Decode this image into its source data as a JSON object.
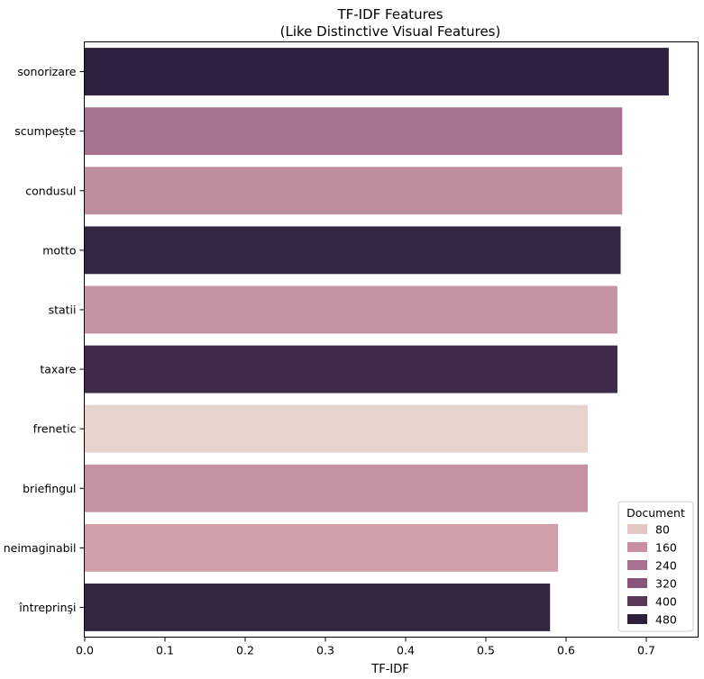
{
  "chart_data": {
    "type": "bar",
    "orientation": "horizontal",
    "title": "TF-IDF Features",
    "subtitle": "(Like Distinctive Visual Features)",
    "xlabel": "TF-IDF",
    "ylabel": "",
    "xlim": [
      0.0,
      0.76
    ],
    "xticks": [
      "0.0",
      "0.1",
      "0.2",
      "0.3",
      "0.4",
      "0.5",
      "0.6",
      "0.7"
    ],
    "grid": false,
    "legend_position": "bottom-right",
    "legend": {
      "title": "Document",
      "entries": [
        {
          "label": "80",
          "color": "#e5c6c4"
        },
        {
          "label": "160",
          "color": "#c88fa2"
        },
        {
          "label": "240",
          "color": "#a7708e"
        },
        {
          "label": "320",
          "color": "#875579"
        },
        {
          "label": "400",
          "color": "#583a58"
        },
        {
          "label": "480",
          "color": "#2e1f3a"
        }
      ]
    },
    "categories": [
      "sonorizare",
      "scumpește",
      "condusul",
      "motto",
      "statii",
      "taxare",
      "frenetic",
      "briefingul",
      "neimaginabil",
      "întreprinşi"
    ],
    "values": [
      0.728,
      0.67,
      0.67,
      0.668,
      0.664,
      0.664,
      0.627,
      0.627,
      0.59,
      0.58
    ],
    "documents": [
      490,
      250,
      185,
      470,
      175,
      430,
      60,
      180,
      150,
      480
    ],
    "colors": [
      "#2f2240",
      "#a2728e",
      "#bf8e9e",
      "#342642",
      "#c594a4",
      "#3f2b4a",
      "#e7d3ce",
      "#c492a3",
      "#cf9ea9",
      "#342540"
    ]
  }
}
